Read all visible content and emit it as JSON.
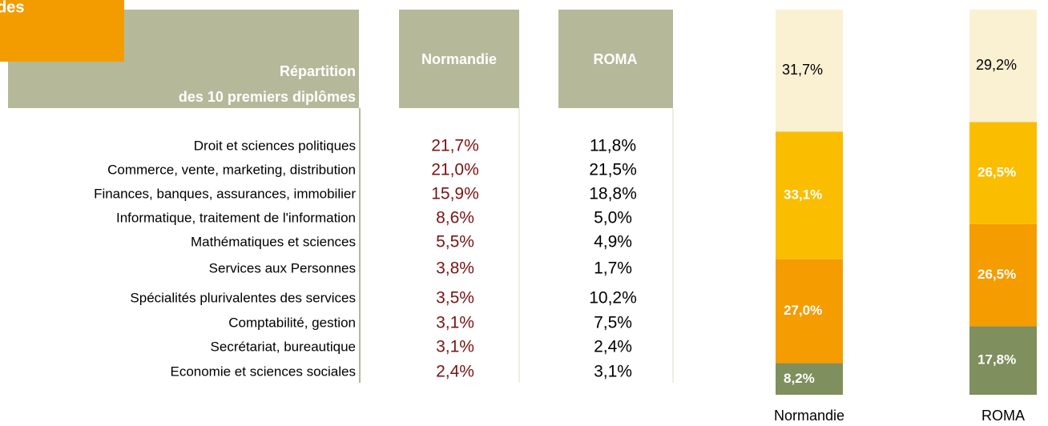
{
  "header": {
    "title": "des"
  },
  "table": {
    "caption": [
      "Répartition",
      "des 10 premiers diplômes"
    ],
    "columns": [
      "Normandie",
      "ROMA"
    ],
    "rows": [
      [
        "Droit et sciences politiques",
        "21,7%",
        "11,8%"
      ],
      [
        "Commerce, vente, marketing, distribution",
        "21,0%",
        "21,5%"
      ],
      [
        "Finances, banques, assurances, immobilier",
        "15,9%",
        "18,8%"
      ],
      [
        "Informatique, traitement de l'information",
        "8,6%",
        "5,0%"
      ],
      [
        "Mathématiques et sciences",
        "5,5%",
        "4,9%"
      ],
      [
        "Services aux Personnes",
        "3,8%",
        "1,7%"
      ],
      [
        "Spécialités plurivalentes des services",
        "3,5%",
        "10,2%"
      ],
      [
        "Comptabilité, gestion",
        "3,1%",
        "7,5%"
      ],
      [
        "Secrétariat, bureautique",
        "3,1%",
        "2,4%"
      ],
      [
        "Economie et sciences sociales",
        "2,4%",
        "3,1%"
      ]
    ]
  },
  "chart_data": {
    "type": "stacked_bar",
    "categories": [
      "Normandie",
      "ROMA"
    ],
    "series": [
      {
        "color": "#7f8f5e",
        "values": [
          8.2,
          17.8
        ],
        "value_labels": [
          "8,2%",
          "17,8%"
        ]
      },
      {
        "color": "#f59c00",
        "values": [
          27.0,
          26.5
        ],
        "value_labels": [
          "27,0%",
          "26,5%"
        ]
      },
      {
        "color": "#fbbd00",
        "values": [
          33.1,
          26.5
        ],
        "value_labels": [
          "33,1%",
          "26,5%"
        ]
      },
      {
        "color": "#faf0d2",
        "values": [
          31.7,
          29.2
        ],
        "value_labels": [
          "31,7%",
          "29,2%"
        ]
      }
    ]
  }
}
